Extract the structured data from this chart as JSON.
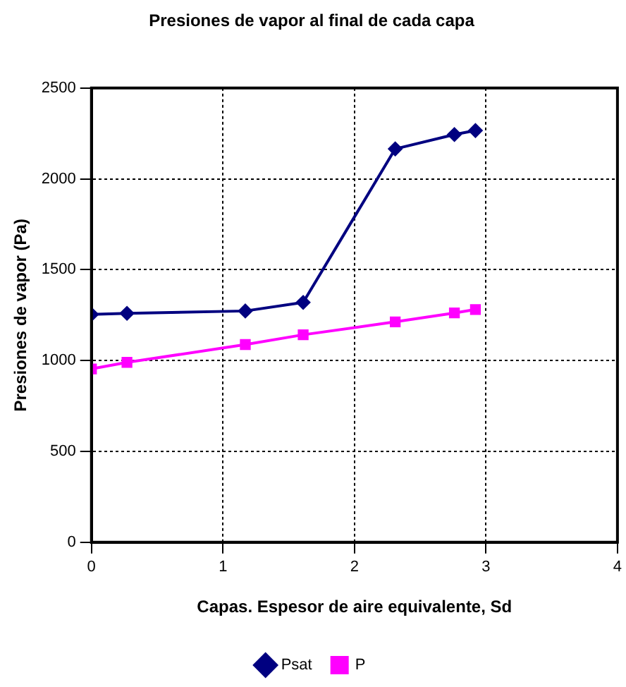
{
  "chart_data": {
    "type": "line",
    "title": "Presiones de vapor al final de cada capa",
    "xlabel": "Capas. Espesor de aire equivalente, Sd",
    "ylabel": "Presiones de vapor (Pa)",
    "x": [
      0,
      0.27,
      1.17,
      1.61,
      2.31,
      2.76,
      2.92
    ],
    "series": [
      {
        "name": "Psat",
        "color": "#000080",
        "marker": "diamond",
        "values": [
          1254,
          1260,
          1273,
          1320,
          2165,
          2244,
          2266
        ]
      },
      {
        "name": "P",
        "color": "#ff00ff",
        "marker": "square",
        "values": [
          954,
          990,
          1088,
          1142,
          1213,
          1262,
          1281
        ]
      }
    ],
    "xlim": [
      0,
      4
    ],
    "xticks": [
      0,
      1,
      2,
      3,
      4
    ],
    "ylim": [
      0,
      2500
    ],
    "yticks": [
      0,
      500,
      1000,
      1500,
      2000,
      2500
    ],
    "grid": true,
    "legend": "bottom",
    "line_style": "solid"
  }
}
